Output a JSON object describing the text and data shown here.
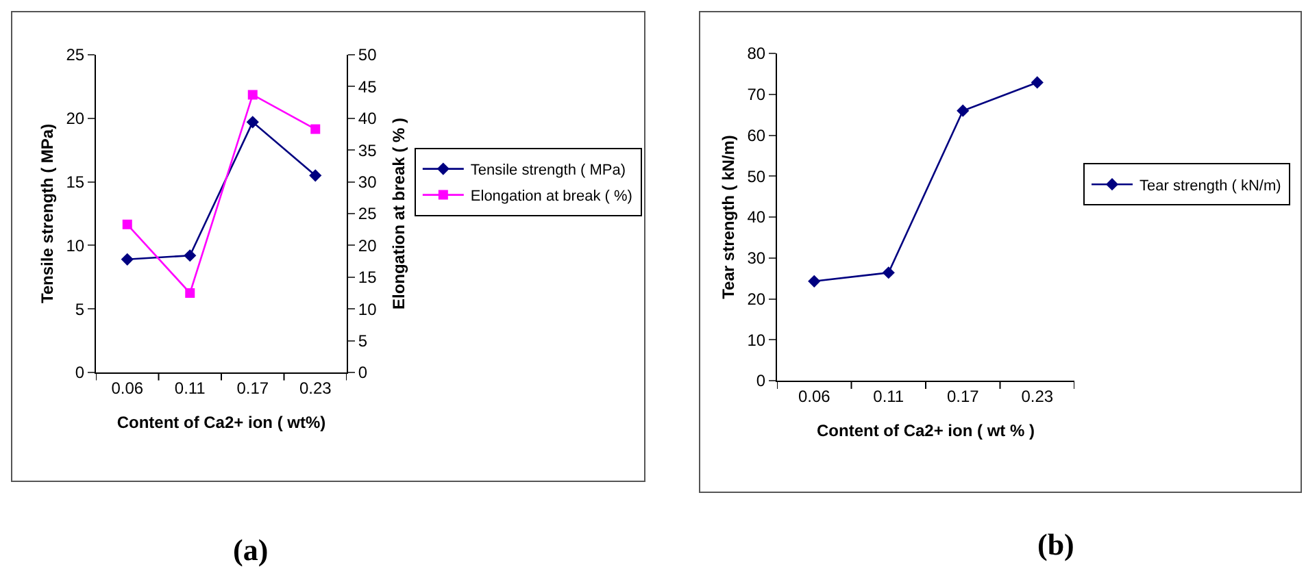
{
  "chart_data": [
    {
      "type": "line",
      "categories": [
        "0.06",
        "0.11",
        "0.17",
        "0.23"
      ],
      "xlabel": "Content of Ca2+ ion ( wt%)",
      "ylabel": "Tensile strength ( MPa)",
      "y2label": "Elongation at break ( % )",
      "ylim": [
        0,
        25
      ],
      "yticks": [
        0,
        5,
        10,
        15,
        20,
        25
      ],
      "y2lim": [
        0,
        50
      ],
      "y2ticks": [
        0,
        5,
        10,
        15,
        20,
        25,
        30,
        35,
        40,
        45,
        50
      ],
      "series": [
        {
          "name": "Tensile strength ( MPa)",
          "color": "#000080",
          "marker": "diamond",
          "values": [
            8.9,
            9.2,
            19.7,
            15.5
          ]
        },
        {
          "name": "Elongation at break ( %)",
          "color": "#ff00ff",
          "marker": "square",
          "axis": "y2",
          "values": [
            23.3,
            12.5,
            43.7,
            38.3
          ]
        }
      ],
      "grid": false,
      "legend": "right",
      "line_style": "solid",
      "annotations": [
        "(a)"
      ]
    },
    {
      "type": "line",
      "categories": [
        "0.06",
        "0.11",
        "0.17",
        "0.23"
      ],
      "xlabel": "Content of Ca2+ ion ( wt % )",
      "ylabel": "Tear strength ( kN/m)",
      "ylim": [
        0,
        80
      ],
      "yticks": [
        0,
        10,
        20,
        30,
        40,
        50,
        60,
        70,
        80
      ],
      "series": [
        {
          "name": "Tear strength ( kN/m)",
          "color": "#000080",
          "marker": "diamond",
          "values": [
            24.3,
            26.4,
            66,
            72.9
          ]
        }
      ],
      "grid": false,
      "legend": "right",
      "line_style": "solid",
      "annotations": [
        "(b)"
      ]
    }
  ]
}
